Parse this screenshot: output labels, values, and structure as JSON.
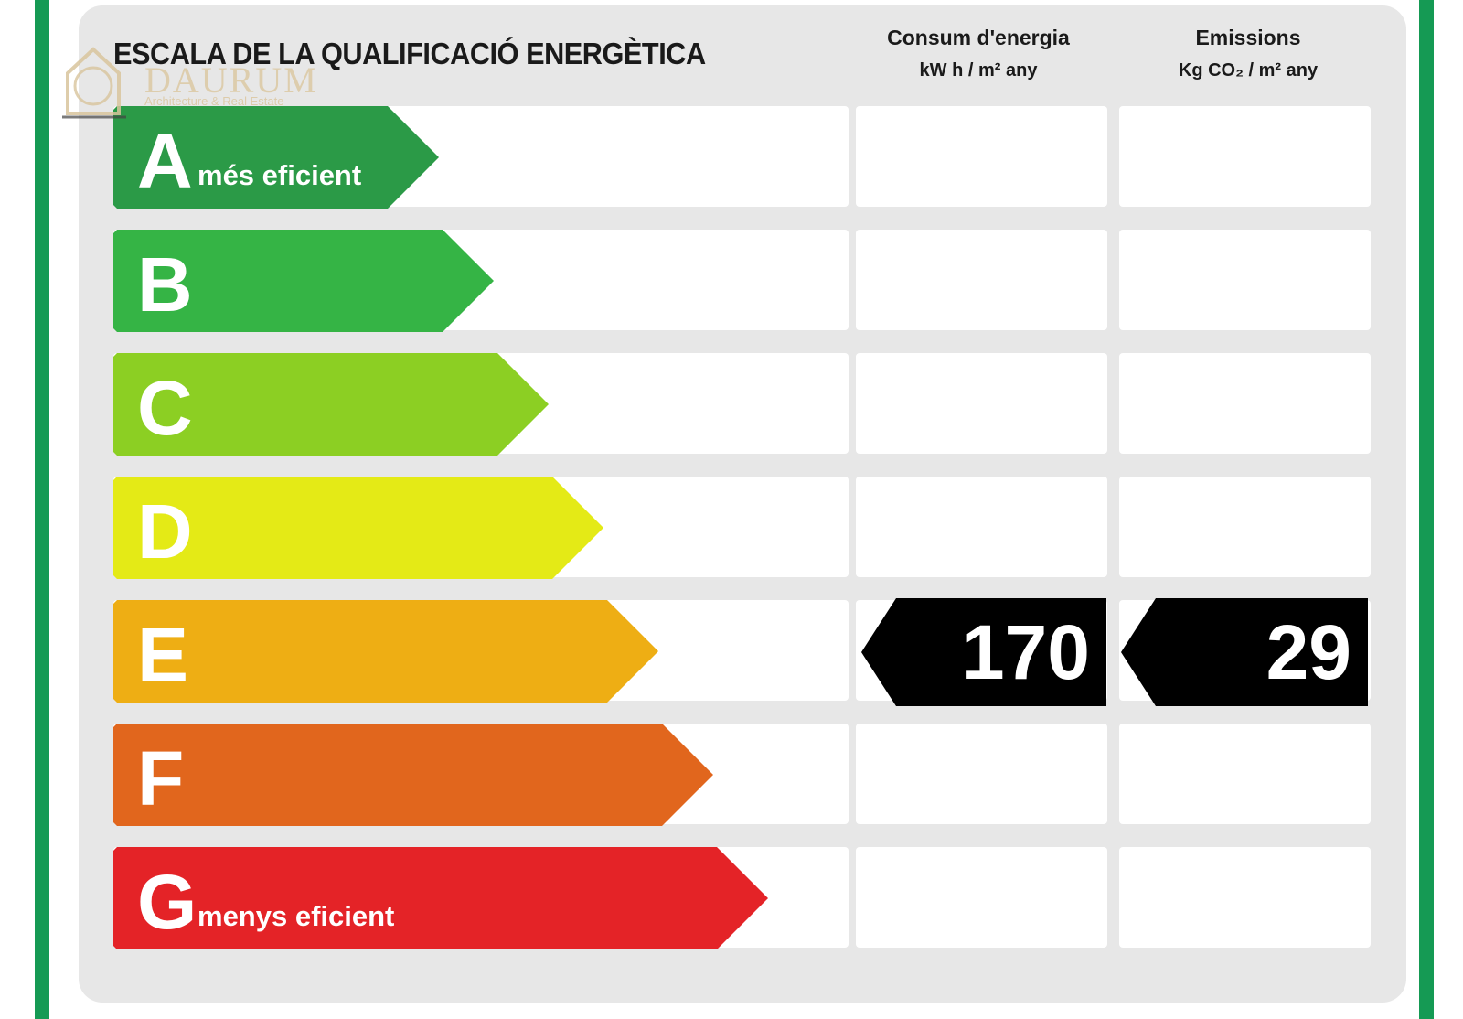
{
  "title": "ESCALA DE LA QUALIFICACIÓ ENERGÈTICA",
  "columns": {
    "consum": {
      "label": "Consum d'energia",
      "unit": "kW h / m² any"
    },
    "emissions": {
      "label": "Emissions",
      "unit": "Kg CO₂ / m² any"
    }
  },
  "logo": {
    "name": "DAURUM",
    "tagline": "Architecture & Real Estate"
  },
  "classes": [
    {
      "letter": "A",
      "sub": "més eficient",
      "color": "#2b9a47"
    },
    {
      "letter": "B",
      "sub": "",
      "color": "#35b445"
    },
    {
      "letter": "C",
      "sub": "",
      "color": "#8ccf23"
    },
    {
      "letter": "D",
      "sub": "",
      "color": "#e4ea16"
    },
    {
      "letter": "E",
      "sub": "",
      "color": "#eeae14"
    },
    {
      "letter": "F",
      "sub": "",
      "color": "#e1661d"
    },
    {
      "letter": "G",
      "sub": "menys eficient",
      "color": "#e42327"
    }
  ],
  "rating": {
    "class": "E",
    "consum_value": "170",
    "emissions_value": "29"
  }
}
